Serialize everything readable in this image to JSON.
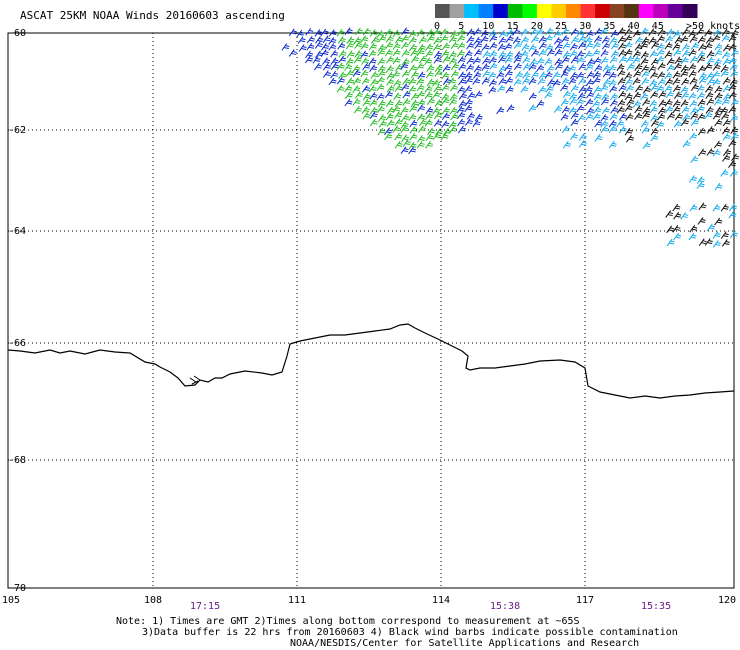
{
  "title": "ASCAT 25KM NOAA Winds 20160603 ascending",
  "legend": {
    "labels": [
      "0",
      "5",
      "10",
      "15",
      "20",
      "25",
      "30",
      "35",
      "40",
      "45",
      ">50 knots"
    ],
    "colors": [
      "#555555",
      "#a0a0a0",
      "#00bfff",
      "#0080ff",
      "#0000cc",
      "#00bb00",
      "#00ff00",
      "#ffff00",
      "#ffcc00",
      "#ff8800",
      "#ff3333",
      "#cc0000",
      "#884422",
      "#553311",
      "#ff00ff",
      "#bb00bb",
      "#660099",
      "#330055"
    ]
  },
  "axes": {
    "lon_labels": [
      "105",
      "108",
      "111",
      "114",
      "117",
      "120"
    ],
    "lat_labels": [
      "-60",
      "-62",
      "-64",
      "-66",
      "-68",
      "-70"
    ]
  },
  "times": [
    "17:15",
    "15:38",
    "15:35"
  ],
  "notes": [
    "Note: 1) Times are GMT 2)Times along bottom correspond to measurement at ~65S",
    "3)Data buffer is 22 hrs from 20160603 4) Black wind barbs indicate possible contamination",
    "NOAA/NESDIS/Center for Satellite Applications and Research"
  ],
  "colors": {
    "barb_green": "#22bb22",
    "barb_blue": "#0a2acc",
    "barb_cyan": "#11aaee",
    "barb_black": "#111111"
  }
}
